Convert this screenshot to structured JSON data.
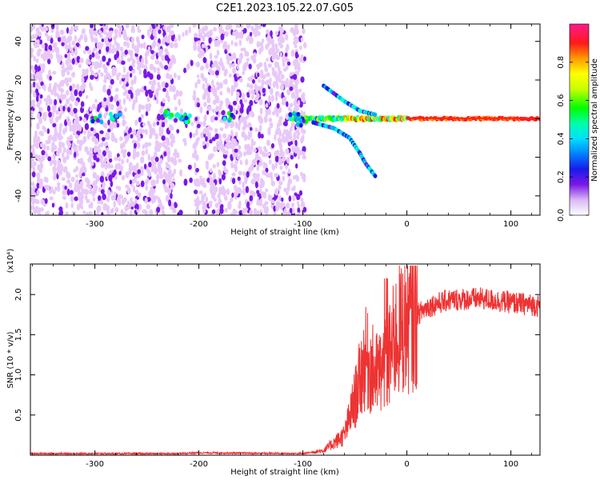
{
  "chart_data": [
    {
      "type": "heatmap",
      "title": "C2E1.2023.105.22.07.G05",
      "xlabel": "Height of straight line (km)",
      "ylabel": "Frequency (Hz)",
      "xlim": [
        -362,
        128
      ],
      "ylim": [
        -50,
        49
      ],
      "xticks": [
        -300,
        -200,
        -100,
        0,
        100
      ],
      "yticks": [
        -40,
        -20,
        0,
        20,
        40
      ],
      "colorbar": {
        "label": "Normalized spectral amplitude",
        "range": [
          0.0,
          1.0
        ],
        "ticks": [
          "0.0",
          "0.2",
          "0.4",
          "0.6",
          "0.8"
        ],
        "colors": [
          "#ffffff",
          "#e8c8f8",
          "#7a18e8",
          "#1a1ae8",
          "#00b0ff",
          "#00ffcc",
          "#00ff00",
          "#c8ff00",
          "#ffff00",
          "#ff9900",
          "#ff1a1a",
          "#ff1a8c"
        ]
      },
      "features": {
        "noise_region_km": [
          -362,
          -98
        ],
        "noise_gap_km": [
          -222,
          -205
        ],
        "main_line_freq_hz": 0,
        "main_line_start_km": -112,
        "upper_branch": [
          {
            "x": -80,
            "y": 17
          },
          {
            "x": -60,
            "y": 9
          },
          {
            "x": -45,
            "y": 4
          },
          {
            "x": -30,
            "y": 2
          }
        ],
        "lower_branch": [
          {
            "x": -90,
            "y": -2
          },
          {
            "x": -70,
            "y": -5
          },
          {
            "x": -55,
            "y": -10
          },
          {
            "x": -45,
            "y": -18
          },
          {
            "x": -40,
            "y": -23
          },
          {
            "x": -30,
            "y": -30
          }
        ]
      }
    },
    {
      "type": "line",
      "title": "",
      "xlabel": "Height of straight line (km)",
      "ylabel": "SNR (10 * v/v)",
      "y_multiplier": "(x10⁴)",
      "xlim": [
        -362,
        128
      ],
      "ylim": [
        0.0,
        2.38
      ],
      "xticks": [
        -300,
        -200,
        -100,
        0,
        100
      ],
      "yticks": [
        0.5,
        1.0,
        1.5,
        2.0
      ],
      "color": "#ee3333",
      "series": [
        {
          "values_key_points": [
            {
              "x": -362,
              "y": 0.02
            },
            {
              "x": -220,
              "y": 0.02
            },
            {
              "x": -200,
              "y": 0.03
            },
            {
              "x": -100,
              "y": 0.02
            },
            {
              "x": -80,
              "y": 0.06
            },
            {
              "x": -60,
              "y": 0.25
            },
            {
              "x": -50,
              "y": 0.7
            },
            {
              "x": -40,
              "y": 1.2
            },
            {
              "x": -30,
              "y": 1.0
            },
            {
              "x": -20,
              "y": 1.1
            },
            {
              "x": -10,
              "y": 1.5
            },
            {
              "x": 0,
              "y": 1.65
            },
            {
              "x": 20,
              "y": 1.85
            },
            {
              "x": 40,
              "y": 1.93
            },
            {
              "x": 70,
              "y": 1.95
            },
            {
              "x": 100,
              "y": 1.9
            },
            {
              "x": 128,
              "y": 1.86
            }
          ]
        }
      ]
    }
  ]
}
